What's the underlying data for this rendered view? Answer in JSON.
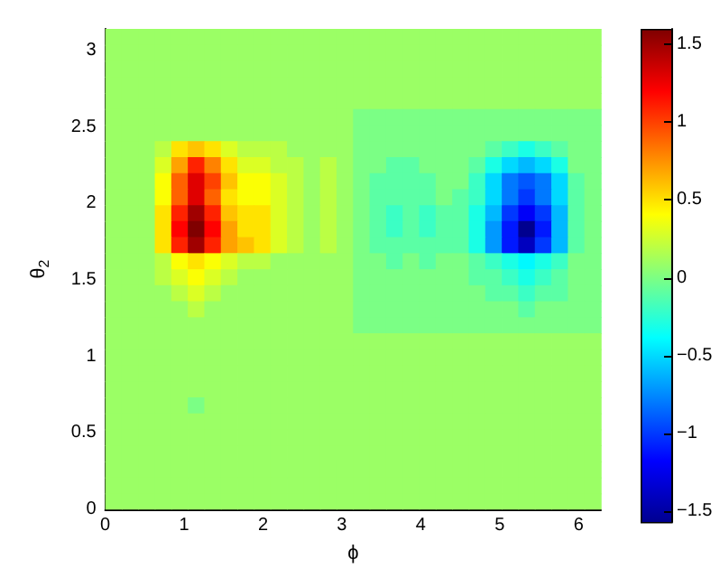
{
  "chart_data": {
    "type": "heatmap",
    "xlabel": "ϕ",
    "ylabel": "θ$_{2}$",
    "x": [
      0.105,
      0.314,
      0.524,
      0.733,
      0.942,
      1.152,
      1.361,
      1.571,
      1.78,
      1.99,
      2.199,
      2.409,
      2.618,
      2.827,
      3.037,
      3.246,
      3.456,
      3.665,
      3.875,
      4.084,
      4.294,
      4.503,
      4.712,
      4.922,
      5.131,
      5.341,
      5.55,
      5.76,
      5.969,
      6.178
    ],
    "y": [
      3.089,
      2.985,
      2.88,
      2.775,
      2.67,
      2.566,
      2.461,
      2.356,
      2.251,
      2.147,
      2.042,
      1.937,
      1.833,
      1.728,
      1.623,
      1.518,
      1.414,
      1.309,
      1.204,
      1.1,
      0.995,
      0.89,
      0.785,
      0.681,
      0.576,
      0.471,
      0.367,
      0.262,
      0.157,
      0.052
    ],
    "xlim": [
      0,
      6.2832
    ],
    "xticks": [
      0,
      1,
      2,
      3,
      4,
      5,
      6
    ],
    "ylim": [
      0,
      3.1416
    ],
    "yticks": [
      0,
      0.5,
      1,
      1.5,
      2,
      2.5,
      3
    ],
    "clim": [
      -1.57,
      1.6
    ],
    "cticks": [
      -1.5,
      -1,
      -0.5,
      0,
      0.5,
      1,
      1.5
    ],
    "cells": [
      [
        0.1,
        0.1,
        0.1,
        0.1,
        0.1,
        0.1,
        0.1,
        0.1,
        0.1,
        0.1,
        0.1,
        0.1,
        0.1,
        0.1,
        0.1,
        0.1,
        0.1,
        0.1,
        0.1,
        0.1,
        0.1,
        0.1,
        0.1,
        0.1,
        0.1,
        0.1,
        0.1,
        0.1,
        0.1,
        0.1
      ],
      [
        0.1,
        0.1,
        0.1,
        0.1,
        0.1,
        0.1,
        0.1,
        0.1,
        0.1,
        0.1,
        0.1,
        0.1,
        0.1,
        0.1,
        0.1,
        0.1,
        0.1,
        0.1,
        0.1,
        0.1,
        0.1,
        0.1,
        0.1,
        0.1,
        0.1,
        0.1,
        0.1,
        0.1,
        0.1,
        0.1
      ],
      [
        0.1,
        0.1,
        0.1,
        0.1,
        0.1,
        0.1,
        0.1,
        0.1,
        0.1,
        0.1,
        0.1,
        0.1,
        0.1,
        0.1,
        0.1,
        0.1,
        0.1,
        0.1,
        0.1,
        0.1,
        0.1,
        0.1,
        0.1,
        0.1,
        0.1,
        0.1,
        0.1,
        0.1,
        0.1,
        0.1
      ],
      [
        0.1,
        0.1,
        0.1,
        0.1,
        0.1,
        0.1,
        0.1,
        0.1,
        0.1,
        0.1,
        0.1,
        0.1,
        0.1,
        0.1,
        0.1,
        0.1,
        0.1,
        0.1,
        0.1,
        0.1,
        0.1,
        0.1,
        0.1,
        0.1,
        0.1,
        0.1,
        0.1,
        0.1,
        0.1,
        0.1
      ],
      [
        0.1,
        0.1,
        0.1,
        0.1,
        0.1,
        0.1,
        0.1,
        0.1,
        0.1,
        0.1,
        0.1,
        0.1,
        0.1,
        0.1,
        0.1,
        0.1,
        0.1,
        0.1,
        0.1,
        0.1,
        0.1,
        0.1,
        0.1,
        0.1,
        0.1,
        0.1,
        0.1,
        0.1,
        0.1,
        0.1
      ],
      [
        0.1,
        0.1,
        0.1,
        0.1,
        0.1,
        0.1,
        0.1,
        0.1,
        0.1,
        0.1,
        0.1,
        0.1,
        0.1,
        0.1,
        0.1,
        0,
        0,
        0,
        0,
        0,
        0,
        0,
        0,
        0,
        0,
        0,
        0,
        0,
        0,
        0
      ],
      [
        0.1,
        0.1,
        0.1,
        0.1,
        0.1,
        0.1,
        0.1,
        0.1,
        0.1,
        0.1,
        0.1,
        0.1,
        0.1,
        0.1,
        0.1,
        0,
        0,
        0,
        0,
        0,
        0,
        0,
        0,
        0,
        0,
        0,
        0,
        0,
        0,
        0
      ],
      [
        0.1,
        0.1,
        0.1,
        0.2,
        0.5,
        0.6,
        0.5,
        0.3,
        0.2,
        0.2,
        0.2,
        0.1,
        0.1,
        0.1,
        0.1,
        0,
        0,
        0,
        0,
        0,
        0,
        0,
        0,
        -0.1,
        -0.2,
        -0.3,
        -0.2,
        -0.1,
        0,
        0
      ],
      [
        0.1,
        0.1,
        0.1,
        0.3,
        0.7,
        1.1,
        0.8,
        0.5,
        0.3,
        0.3,
        0.2,
        0.2,
        0.1,
        0.2,
        0.1,
        0,
        0,
        -0.1,
        -0.1,
        0,
        0,
        0,
        -0.1,
        -0.3,
        -0.5,
        -0.6,
        -0.5,
        -0.3,
        0,
        0
      ],
      [
        0.1,
        0.1,
        0.1,
        0.4,
        0.9,
        1.3,
        1.0,
        0.6,
        0.4,
        0.4,
        0.3,
        0.2,
        0.1,
        0.2,
        0.1,
        0,
        -0.1,
        -0.1,
        -0.1,
        -0.1,
        0,
        0,
        -0.2,
        -0.5,
        -0.8,
        -0.9,
        -0.8,
        -0.5,
        -0.1,
        0
      ],
      [
        0.1,
        0.1,
        0.1,
        0.4,
        0.9,
        1.3,
        0.9,
        0.5,
        0.4,
        0.4,
        0.3,
        0.2,
        0.1,
        0.2,
        0.1,
        0,
        -0.1,
        -0.1,
        -0.1,
        -0.1,
        0,
        -0.1,
        -0.2,
        -0.5,
        -0.8,
        -1.0,
        -0.8,
        -0.5,
        -0.1,
        0
      ],
      [
        0.1,
        0.1,
        0.1,
        0.5,
        1.1,
        1.5,
        1.1,
        0.6,
        0.5,
        0.5,
        0.3,
        0.2,
        0.1,
        0.2,
        0.1,
        0,
        -0.1,
        -0.2,
        -0.1,
        -0.2,
        -0.1,
        -0.1,
        -0.3,
        -0.6,
        -1.0,
        -1.2,
        -1.0,
        -0.6,
        -0.1,
        0
      ],
      [
        0.1,
        0.1,
        0.1,
        0.5,
        1.2,
        1.6,
        1.2,
        0.7,
        0.5,
        0.5,
        0.3,
        0.2,
        0.1,
        0.2,
        0.1,
        0,
        -0.1,
        -0.2,
        -0.1,
        -0.2,
        -0.1,
        -0.1,
        -0.3,
        -0.7,
        -1.1,
        -1.57,
        -1.1,
        -0.6,
        -0.1,
        0
      ],
      [
        0.1,
        0.1,
        0.1,
        0.5,
        1.1,
        1.5,
        1.1,
        0.7,
        0.6,
        0.5,
        0.3,
        0.2,
        0.1,
        0.2,
        0.1,
        0,
        -0.1,
        -0.1,
        -0.1,
        -0.1,
        -0.1,
        -0.1,
        -0.3,
        -0.7,
        -1.1,
        -1.4,
        -1.0,
        -0.6,
        -0.1,
        0
      ],
      [
        0.1,
        0.1,
        0.1,
        0.2,
        0.4,
        0.5,
        0.4,
        0.3,
        0.2,
        0.2,
        0.1,
        0.1,
        0.1,
        0.1,
        0.1,
        0,
        0,
        -0.1,
        0,
        -0.1,
        0,
        0,
        -0.1,
        -0.2,
        -0.3,
        -0.4,
        -0.3,
        -0.2,
        0,
        0
      ],
      [
        0.1,
        0.1,
        0.1,
        0.2,
        0.3,
        0.4,
        0.3,
        0.2,
        0.1,
        0.1,
        0.1,
        0.1,
        0.1,
        0.1,
        0.1,
        0,
        0,
        0,
        0,
        0,
        0,
        0,
        -0.1,
        -0.1,
        -0.2,
        -0.3,
        -0.2,
        -0.1,
        0,
        0
      ],
      [
        0.1,
        0.1,
        0.1,
        0.1,
        0.2,
        0.3,
        0.2,
        0.1,
        0.1,
        0.1,
        0.1,
        0.1,
        0.1,
        0.1,
        0.1,
        0,
        0,
        0,
        0,
        0,
        0,
        0,
        0,
        -0.1,
        -0.1,
        -0.2,
        -0.1,
        -0.1,
        0,
        0
      ],
      [
        0.1,
        0.1,
        0.1,
        0.1,
        0.1,
        0.2,
        0.1,
        0.1,
        0.1,
        0.1,
        0.1,
        0.1,
        0.1,
        0.1,
        0.1,
        0,
        0,
        0,
        0,
        0,
        0,
        0,
        0,
        0,
        0,
        -0.1,
        0,
        0,
        0,
        0
      ],
      [
        0.1,
        0.1,
        0.1,
        0.1,
        0.1,
        0.1,
        0.1,
        0.1,
        0.1,
        0.1,
        0.1,
        0.1,
        0.1,
        0.1,
        0.1,
        0,
        0,
        0,
        0,
        0,
        0,
        0,
        0,
        0,
        0,
        0,
        0,
        0,
        0,
        0
      ],
      [
        0.1,
        0.1,
        0.1,
        0.1,
        0.1,
        0.1,
        0.1,
        0.1,
        0.1,
        0.1,
        0.1,
        0.1,
        0.1,
        0.1,
        0.1,
        0.1,
        0.1,
        0.1,
        0.1,
        0.1,
        0.1,
        0.1,
        0.1,
        0.1,
        0.1,
        0.1,
        0.1,
        0.1,
        0.1,
        0.1
      ],
      [
        0.1,
        0.1,
        0.1,
        0.1,
        0.1,
        0.1,
        0.1,
        0.1,
        0.1,
        0.1,
        0.1,
        0.1,
        0.1,
        0.1,
        0.1,
        0.1,
        0.1,
        0.1,
        0.1,
        0.1,
        0.1,
        0.1,
        0.1,
        0.1,
        0.1,
        0.1,
        0.1,
        0.1,
        0.1,
        0.1
      ],
      [
        0.1,
        0.1,
        0.1,
        0.1,
        0.1,
        0.1,
        0.1,
        0.1,
        0.1,
        0.1,
        0.1,
        0.1,
        0.1,
        0.1,
        0.1,
        0.1,
        0.1,
        0.1,
        0.1,
        0.1,
        0.1,
        0.1,
        0.1,
        0.1,
        0.1,
        0.1,
        0.1,
        0.1,
        0.1,
        0.1
      ],
      [
        0.1,
        0.1,
        0.1,
        0.1,
        0.1,
        0.1,
        0.1,
        0.1,
        0.1,
        0.1,
        0.1,
        0.1,
        0.1,
        0.1,
        0.1,
        0.1,
        0.1,
        0.1,
        0.1,
        0.1,
        0.1,
        0.1,
        0.1,
        0.1,
        0.1,
        0.1,
        0.1,
        0.1,
        0.1,
        0.1
      ],
      [
        0.1,
        0.1,
        0.1,
        0.1,
        0.1,
        0,
        0.1,
        0.1,
        0.1,
        0.1,
        0.1,
        0.1,
        0.1,
        0.1,
        0.1,
        0.1,
        0.1,
        0.1,
        0.1,
        0.1,
        0.1,
        0.1,
        0.1,
        0.1,
        0.1,
        0.1,
        0.1,
        0.1,
        0.1,
        0.1
      ],
      [
        0.1,
        0.1,
        0.1,
        0.1,
        0.1,
        0.1,
        0.1,
        0.1,
        0.1,
        0.1,
        0.1,
        0.1,
        0.1,
        0.1,
        0.1,
        0.1,
        0.1,
        0.1,
        0.1,
        0.1,
        0.1,
        0.1,
        0.1,
        0.1,
        0.1,
        0.1,
        0.1,
        0.1,
        0.1,
        0.1
      ],
      [
        0.1,
        0.1,
        0.1,
        0.1,
        0.1,
        0.1,
        0.1,
        0.1,
        0.1,
        0.1,
        0.1,
        0.1,
        0.1,
        0.1,
        0.1,
        0.1,
        0.1,
        0.1,
        0.1,
        0.1,
        0.1,
        0.1,
        0.1,
        0.1,
        0.1,
        0.1,
        0.1,
        0.1,
        0.1,
        0.1
      ],
      [
        0.1,
        0.1,
        0.1,
        0.1,
        0.1,
        0.1,
        0.1,
        0.1,
        0.1,
        0.1,
        0.1,
        0.1,
        0.1,
        0.1,
        0.1,
        0.1,
        0.1,
        0.1,
        0.1,
        0.1,
        0.1,
        0.1,
        0.1,
        0.1,
        0.1,
        0.1,
        0.1,
        0.1,
        0.1,
        0.1
      ],
      [
        0.1,
        0.1,
        0.1,
        0.1,
        0.1,
        0.1,
        0.1,
        0.1,
        0.1,
        0.1,
        0.1,
        0.1,
        0.1,
        0.1,
        0.1,
        0.1,
        0.1,
        0.1,
        0.1,
        0.1,
        0.1,
        0.1,
        0.1,
        0.1,
        0.1,
        0.1,
        0.1,
        0.1,
        0.1,
        0.1
      ],
      [
        0.1,
        0.1,
        0.1,
        0.1,
        0.1,
        0.1,
        0.1,
        0.1,
        0.1,
        0.1,
        0.1,
        0.1,
        0.1,
        0.1,
        0.1,
        0.1,
        0.1,
        0.1,
        0.1,
        0.1,
        0.1,
        0.1,
        0.1,
        0.1,
        0.1,
        0.1,
        0.1,
        0.1,
        0.1,
        0.1
      ],
      [
        0.1,
        0.1,
        0.1,
        0.1,
        0.1,
        0.1,
        0.1,
        0.1,
        0.1,
        0.1,
        0.1,
        0.1,
        0.1,
        0.1,
        0.1,
        0.1,
        0.1,
        0.1,
        0.1,
        0.1,
        0.1,
        0.1,
        0.1,
        0.1,
        0.1,
        0.1,
        0.1,
        0.1,
        0.1,
        0.1
      ]
    ]
  }
}
